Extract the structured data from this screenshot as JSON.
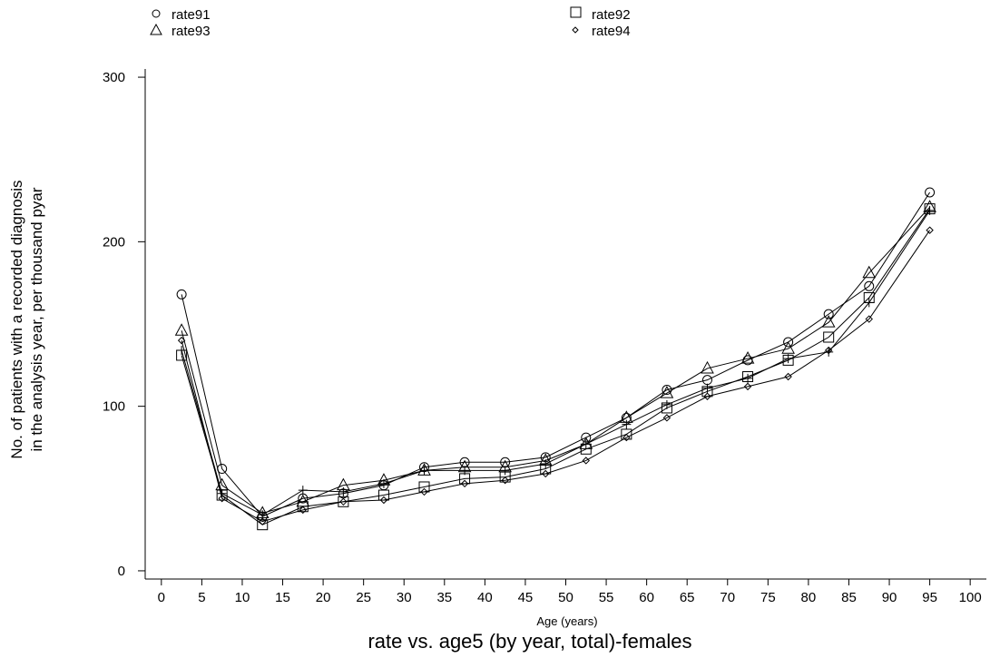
{
  "chart_data": {
    "type": "line",
    "title": "rate vs. age5 (by year, total)-females",
    "xlabel": "Age (years)",
    "ylabel_line1": "No. of patients with a recorded diagnosis",
    "ylabel_line2": "in the analysis year, per thousand pyar",
    "xlim": [
      -2,
      102
    ],
    "ylim": [
      -5,
      305
    ],
    "xticks": [
      0,
      5,
      10,
      15,
      20,
      25,
      30,
      35,
      40,
      45,
      50,
      55,
      60,
      65,
      70,
      75,
      80,
      85,
      90,
      95,
      100
    ],
    "yticks": [
      0,
      100,
      200,
      300
    ],
    "x": [
      2.5,
      7.5,
      12.5,
      17.5,
      22.5,
      27.5,
      32.5,
      37.5,
      42.5,
      47.5,
      52.5,
      57.5,
      62.5,
      67.5,
      72.5,
      77.5,
      82.5,
      87.5,
      95
    ],
    "grid": false,
    "legend_position": "top",
    "series": [
      {
        "name": "rate91",
        "marker": "circle",
        "values": [
          168,
          62,
          33,
          44,
          47,
          52,
          63,
          66,
          66,
          69,
          81,
          93,
          110,
          116,
          128,
          139,
          156,
          173,
          230
        ]
      },
      {
        "name": "rate92",
        "marker": "square",
        "values": [
          131,
          46,
          28,
          39,
          42,
          46,
          51,
          56,
          57,
          62,
          74,
          83,
          99,
          109,
          118,
          128,
          142,
          166,
          220
        ]
      },
      {
        "name": "rate93",
        "marker": "triangle",
        "values": [
          146,
          52,
          35,
          42,
          52,
          55,
          61,
          63,
          63,
          67,
          77,
          93,
          108,
          123,
          129,
          135,
          151,
          181,
          221
        ]
      },
      {
        "name": "rate94",
        "marker": "diamond",
        "values": [
          140,
          44,
          30,
          37,
          42,
          43,
          48,
          53,
          55,
          59,
          67,
          81,
          93,
          106,
          112,
          118,
          134,
          153,
          207
        ]
      },
      {
        "name": "",
        "marker": "plus",
        "values": [
          134,
          47,
          34,
          49,
          48,
          53,
          61,
          61,
          61,
          65,
          77,
          89,
          101,
          111,
          117,
          129,
          133,
          163,
          219
        ]
      }
    ]
  }
}
